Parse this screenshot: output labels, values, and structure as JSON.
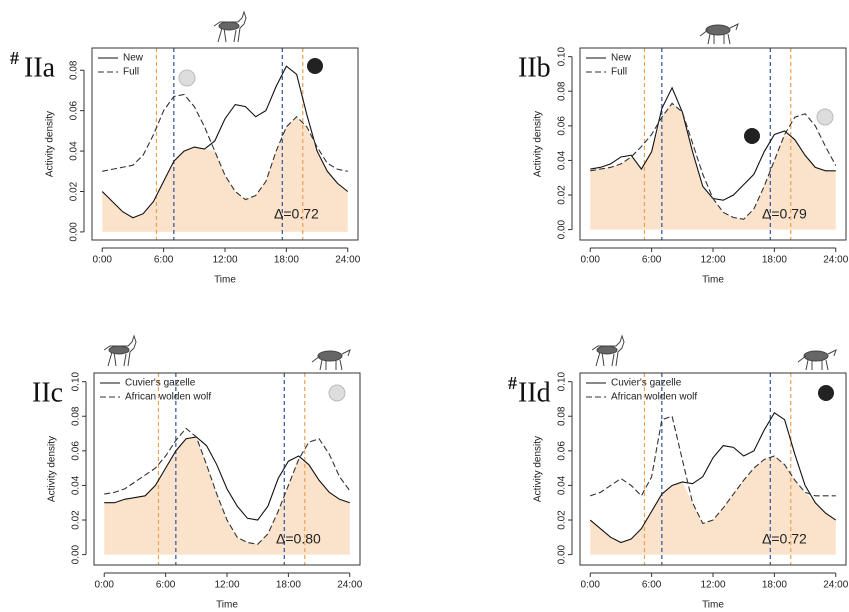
{
  "chart_data": [
    {
      "type": "line",
      "panel_mark": "#",
      "panel_label": "IIa",
      "annotation": "Δ=0.72",
      "x_label": "Time",
      "y_label": "Activity density",
      "x": [
        0,
        1,
        2,
        3,
        4,
        5,
        6,
        7,
        8,
        9,
        10,
        11,
        12,
        13,
        14,
        15,
        16,
        17,
        18,
        19,
        20,
        21,
        22,
        23,
        24
      ],
      "series": [
        {
          "name": "New",
          "color": "#111111",
          "dash": "solid",
          "values": [
            0.02,
            0.015,
            0.01,
            0.007,
            0.009,
            0.015,
            0.025,
            0.035,
            0.04,
            0.042,
            0.041,
            0.045,
            0.056,
            0.063,
            0.062,
            0.057,
            0.06,
            0.072,
            0.082,
            0.078,
            0.058,
            0.04,
            0.03,
            0.024,
            0.02
          ]
        },
        {
          "name": "Full",
          "color": "#333333",
          "dash": "dashed",
          "values": [
            0.03,
            0.031,
            0.032,
            0.033,
            0.038,
            0.048,
            0.06,
            0.067,
            0.068,
            0.062,
            0.052,
            0.04,
            0.028,
            0.02,
            0.016,
            0.018,
            0.025,
            0.04,
            0.052,
            0.057,
            0.052,
            0.042,
            0.034,
            0.031,
            0.03
          ]
        }
      ],
      "overlap_color": "#fbe3cb",
      "reference_lines": [
        {
          "x": 5.3,
          "color": "#f0a050"
        },
        {
          "x": 7.0,
          "color": "#3050a0"
        },
        {
          "x": 17.6,
          "color": "#3050a0"
        },
        {
          "x": 19.6,
          "color": "#f0a050"
        }
      ],
      "xlim": [
        -1,
        25
      ],
      "ylim": [
        -0.004,
        0.091
      ],
      "xticks": [
        {
          "value": 0,
          "label": "0:00"
        },
        {
          "value": 6,
          "label": "6:00"
        },
        {
          "value": 12,
          "label": "12:00"
        },
        {
          "value": 18,
          "label": "18:00"
        },
        {
          "value": 24,
          "label": "24:00"
        }
      ],
      "yticks": [
        {
          "value": 0,
          "label": "0.00"
        },
        {
          "value": 0.02,
          "label": "0.02"
        },
        {
          "value": 0.04,
          "label": "0.04"
        },
        {
          "value": 0.06,
          "label": "0.06"
        },
        {
          "value": 0.08,
          "label": "0.08"
        }
      ]
    },
    {
      "type": "line",
      "panel_label": "IIb",
      "annotation": "Δ=0.79",
      "x_label": "Time",
      "y_label": "Activity density",
      "x": [
        0,
        1,
        2,
        3,
        4,
        5,
        6,
        7,
        8,
        9,
        10,
        11,
        12,
        13,
        14,
        15,
        16,
        17,
        18,
        19,
        20,
        21,
        22,
        23,
        24
      ],
      "series": [
        {
          "name": "New",
          "color": "#111111",
          "dash": "solid",
          "values": [
            0.035,
            0.036,
            0.038,
            0.042,
            0.043,
            0.035,
            0.045,
            0.07,
            0.082,
            0.068,
            0.045,
            0.025,
            0.018,
            0.017,
            0.02,
            0.026,
            0.032,
            0.045,
            0.055,
            0.057,
            0.052,
            0.043,
            0.036,
            0.034,
            0.034
          ]
        },
        {
          "name": "Full",
          "color": "#333333",
          "dash": "dashed",
          "values": [
            0.034,
            0.035,
            0.036,
            0.038,
            0.042,
            0.048,
            0.055,
            0.065,
            0.073,
            0.068,
            0.05,
            0.032,
            0.018,
            0.01,
            0.007,
            0.006,
            0.012,
            0.025,
            0.04,
            0.055,
            0.065,
            0.067,
            0.06,
            0.048,
            0.037
          ]
        }
      ],
      "overlap_color": "#fbe3cb",
      "reference_lines": [
        {
          "x": 5.3,
          "color": "#f0a050"
        },
        {
          "x": 7.0,
          "color": "#3050a0"
        },
        {
          "x": 17.6,
          "color": "#3050a0"
        },
        {
          "x": 19.6,
          "color": "#f0a050"
        }
      ],
      "xlim": [
        -1,
        25
      ],
      "ylim": [
        -0.006,
        0.105
      ],
      "xticks": [
        {
          "value": 0,
          "label": "0:00"
        },
        {
          "value": 6,
          "label": "6:00"
        },
        {
          "value": 12,
          "label": "12:00"
        },
        {
          "value": 18,
          "label": "18:00"
        },
        {
          "value": 24,
          "label": "24:00"
        }
      ],
      "yticks": [
        {
          "value": 0,
          "label": "0.00"
        },
        {
          "value": 0.02,
          "label": "0.02"
        },
        {
          "value": 0.04,
          "label": "0.04"
        },
        {
          "value": 0.06,
          "label": "0.06"
        },
        {
          "value": 0.08,
          "label": "0.08"
        },
        {
          "value": 0.1,
          "label": "0.10"
        }
      ]
    },
    {
      "type": "line",
      "panel_label": "IIc",
      "annotation": "Δ=0.80",
      "x_label": "Time",
      "y_label": "Activity density",
      "x": [
        0,
        1,
        2,
        3,
        4,
        5,
        6,
        7,
        8,
        9,
        10,
        11,
        12,
        13,
        14,
        15,
        16,
        17,
        18,
        19,
        20,
        21,
        22,
        23,
        24
      ],
      "series": [
        {
          "name": "Cuvier's gazelle",
          "color": "#111111",
          "dash": "solid",
          "values": [
            0.03,
            0.03,
            0.032,
            0.033,
            0.034,
            0.04,
            0.05,
            0.06,
            0.067,
            0.068,
            0.063,
            0.052,
            0.038,
            0.028,
            0.021,
            0.02,
            0.028,
            0.044,
            0.054,
            0.057,
            0.052,
            0.043,
            0.036,
            0.032,
            0.03
          ]
        },
        {
          "name": "African wolden wolf",
          "color": "#333333",
          "dash": "dashed",
          "values": [
            0.035,
            0.036,
            0.038,
            0.042,
            0.046,
            0.05,
            0.057,
            0.066,
            0.073,
            0.068,
            0.052,
            0.035,
            0.02,
            0.01,
            0.007,
            0.006,
            0.012,
            0.025,
            0.04,
            0.055,
            0.065,
            0.067,
            0.058,
            0.045,
            0.037
          ]
        }
      ],
      "overlap_color": "#fbe3cb",
      "reference_lines": [
        {
          "x": 5.3,
          "color": "#f0a050"
        },
        {
          "x": 7.0,
          "color": "#3050a0"
        },
        {
          "x": 17.6,
          "color": "#3050a0"
        },
        {
          "x": 19.6,
          "color": "#f0a050"
        }
      ],
      "xlim": [
        -1,
        25
      ],
      "ylim": [
        -0.006,
        0.105
      ],
      "xticks": [
        {
          "value": 0,
          "label": "0:00"
        },
        {
          "value": 6,
          "label": "6:00"
        },
        {
          "value": 12,
          "label": "12:00"
        },
        {
          "value": 18,
          "label": "18:00"
        },
        {
          "value": 24,
          "label": "24:00"
        }
      ],
      "yticks": [
        {
          "value": 0,
          "label": "0.00"
        },
        {
          "value": 0.02,
          "label": "0.02"
        },
        {
          "value": 0.04,
          "label": "0.04"
        },
        {
          "value": 0.06,
          "label": "0.06"
        },
        {
          "value": 0.08,
          "label": "0.08"
        },
        {
          "value": 0.1,
          "label": "0.10"
        }
      ]
    },
    {
      "type": "line",
      "panel_mark": "#",
      "panel_label": "IId",
      "annotation": "Δ=0.72",
      "x_label": "Time",
      "y_label": "Activity density",
      "x": [
        0,
        1,
        2,
        3,
        4,
        5,
        6,
        7,
        8,
        9,
        10,
        11,
        12,
        13,
        14,
        15,
        16,
        17,
        18,
        19,
        20,
        21,
        22,
        23,
        24
      ],
      "series": [
        {
          "name": "Cuvier's gazelle",
          "color": "#111111",
          "dash": "solid",
          "values": [
            0.02,
            0.015,
            0.01,
            0.007,
            0.009,
            0.015,
            0.025,
            0.035,
            0.04,
            0.042,
            0.041,
            0.045,
            0.056,
            0.063,
            0.062,
            0.057,
            0.06,
            0.072,
            0.082,
            0.078,
            0.058,
            0.04,
            0.03,
            0.024,
            0.02
          ]
        },
        {
          "name": "African wolden wolf",
          "color": "#333333",
          "dash": "dashed",
          "values": [
            0.034,
            0.036,
            0.04,
            0.044,
            0.04,
            0.034,
            0.045,
            0.078,
            0.08,
            0.055,
            0.03,
            0.018,
            0.02,
            0.027,
            0.035,
            0.043,
            0.05,
            0.055,
            0.057,
            0.052,
            0.043,
            0.036,
            0.034,
            0.034,
            0.034
          ]
        }
      ],
      "overlap_color": "#fbe3cb",
      "reference_lines": [
        {
          "x": 5.3,
          "color": "#f0a050"
        },
        {
          "x": 7.0,
          "color": "#3050a0"
        },
        {
          "x": 17.6,
          "color": "#3050a0"
        },
        {
          "x": 19.6,
          "color": "#f0a050"
        }
      ],
      "xlim": [
        -1,
        25
      ],
      "ylim": [
        -0.006,
        0.105
      ],
      "xticks": [
        {
          "value": 0,
          "label": "0:00"
        },
        {
          "value": 6,
          "label": "6:00"
        },
        {
          "value": 12,
          "label": "12:00"
        },
        {
          "value": 18,
          "label": "18:00"
        },
        {
          "value": 24,
          "label": "24:00"
        }
      ],
      "yticks": [
        {
          "value": 0,
          "label": "0.00"
        },
        {
          "value": 0.02,
          "label": "0.02"
        },
        {
          "value": 0.04,
          "label": "0.04"
        },
        {
          "value": 0.06,
          "label": "0.06"
        },
        {
          "value": 0.08,
          "label": "0.08"
        },
        {
          "value": 0.1,
          "label": "0.10"
        }
      ]
    }
  ]
}
